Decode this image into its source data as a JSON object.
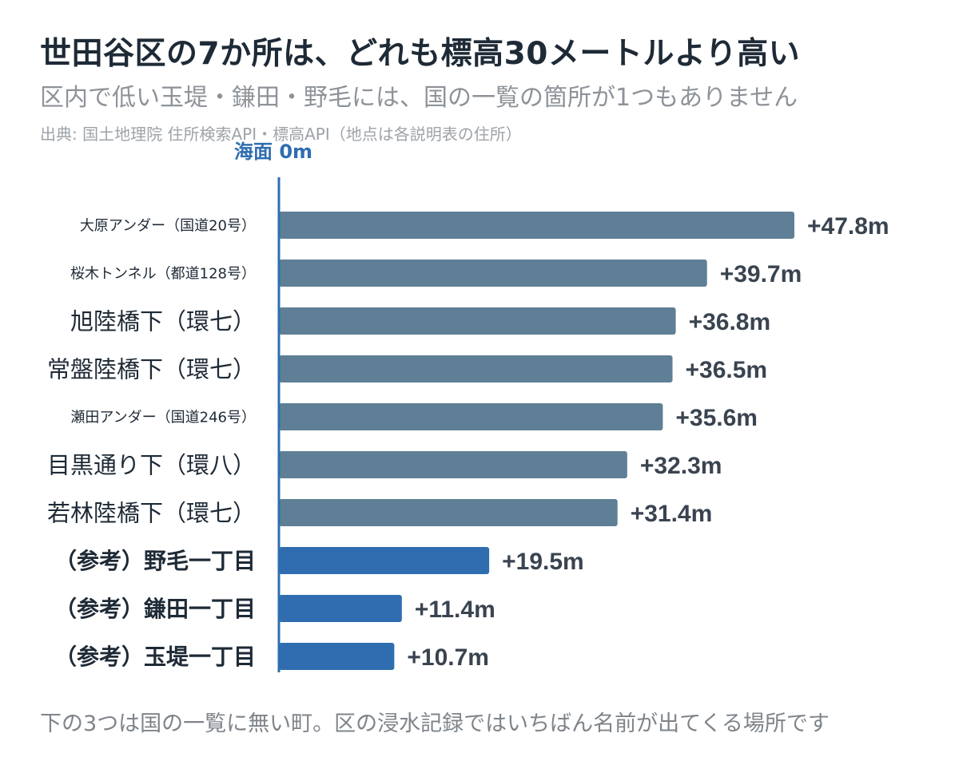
{
  "header": {
    "title": "世田谷区の7か所は、どれも標高30メートルより高い",
    "subtitle": "区内で低い玉堤・鎌田・野毛には、国の一覧の箇所が1つもありません",
    "source": "出典: 国土地理院 住所検索API・標高API（地点は各説明表の住所）"
  },
  "footer": {
    "note": "下の3つは国の一覧に無い町。区の浸水記録ではいちばん名前が出てくる場所です"
  },
  "colors": {
    "listed_bar": "#5e7f95",
    "reference_bar": "#2f6db0",
    "zero_line": "#2f6db0",
    "value_label": "#3a4450",
    "category_label": "#1e2a36"
  },
  "chart_data": {
    "type": "bar",
    "orientation": "horizontal",
    "baseline_label": "海面 0m",
    "xlim": [
      0,
      50
    ],
    "grid": false,
    "categories": [
      "大原アンダー（国道20号）",
      "桜木トンネル（都道128号）",
      "旭陸橋下（環七）",
      "常盤陸橋下（環七）",
      "瀬田アンダー（国道246号）",
      "目黒通り下（環八）",
      "若林陸橋下（環七）",
      "（参考）野毛一丁目",
      "（参考）鎌田一丁目",
      "（参考）玉堤一丁目"
    ],
    "values": [
      47.8,
      39.7,
      36.8,
      36.5,
      35.6,
      32.3,
      31.4,
      19.5,
      11.4,
      10.7
    ],
    "value_labels": [
      "+47.8m",
      "+39.7m",
      "+36.8m",
      "+36.5m",
      "+35.6m",
      "+32.3m",
      "+31.4m",
      "+19.5m",
      "+11.4m",
      "+10.7m"
    ],
    "label_size": [
      "small",
      "small",
      "large",
      "large",
      "small",
      "large",
      "large",
      "bold",
      "bold",
      "bold"
    ],
    "group": [
      "listed",
      "listed",
      "listed",
      "listed",
      "listed",
      "listed",
      "listed",
      "reference",
      "reference",
      "reference"
    ]
  }
}
